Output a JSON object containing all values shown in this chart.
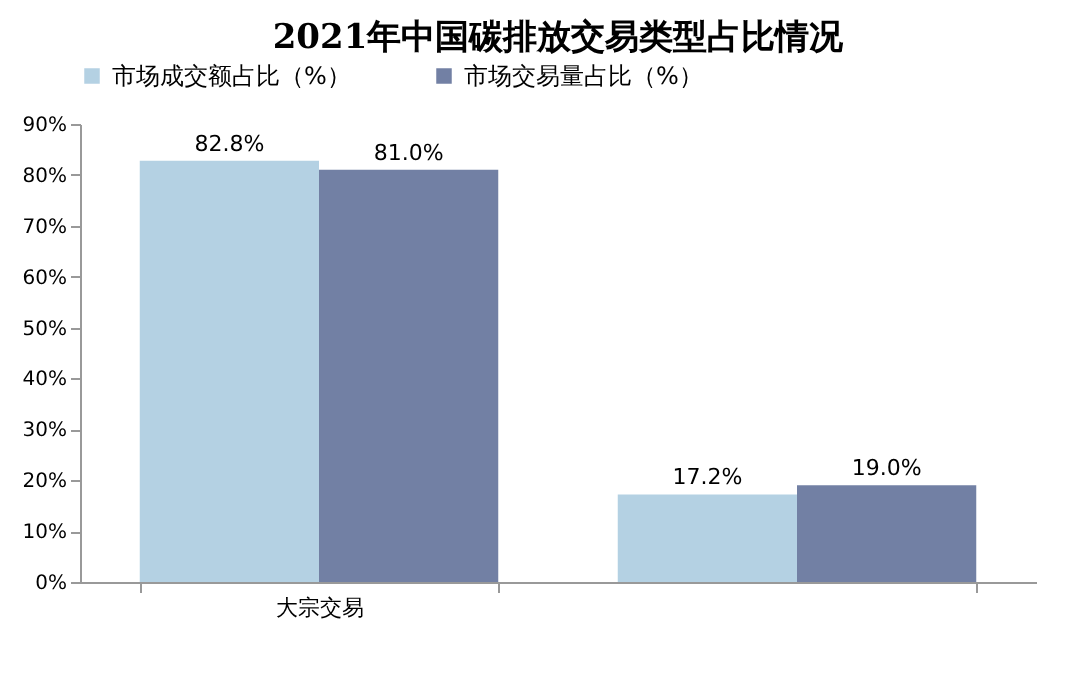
{
  "chart_data": {
    "type": "bar",
    "title": "2021年中国碳排放交易类型占比情况",
    "categories": [
      "大宗交易",
      null
    ],
    "series": [
      {
        "name": "市场成交额占比（%）",
        "color": "#b4d1e3",
        "values": [
          82.8,
          17.2
        ],
        "value_labels": [
          "82.8%",
          "17.2%"
        ]
      },
      {
        "name": "市场交易量占比（%）",
        "color": "#7280a4",
        "values": [
          81.0,
          19.0
        ],
        "value_labels": [
          "81.0%",
          "19.0%"
        ]
      }
    ],
    "ylim": [
      0,
      90
    ],
    "yticks": [
      {
        "value": 0,
        "label": "0%"
      },
      {
        "value": 10,
        "label": "10%"
      },
      {
        "value": 20,
        "label": "20%"
      },
      {
        "value": 30,
        "label": "30%"
      },
      {
        "value": 40,
        "label": "40%"
      },
      {
        "value": 50,
        "label": "50%"
      },
      {
        "value": 60,
        "label": "60%"
      },
      {
        "value": 70,
        "label": "70%"
      },
      {
        "value": 80,
        "label": "80%"
      },
      {
        "value": 90,
        "label": "90%"
      }
    ],
    "legend": "top",
    "grid": false
  }
}
